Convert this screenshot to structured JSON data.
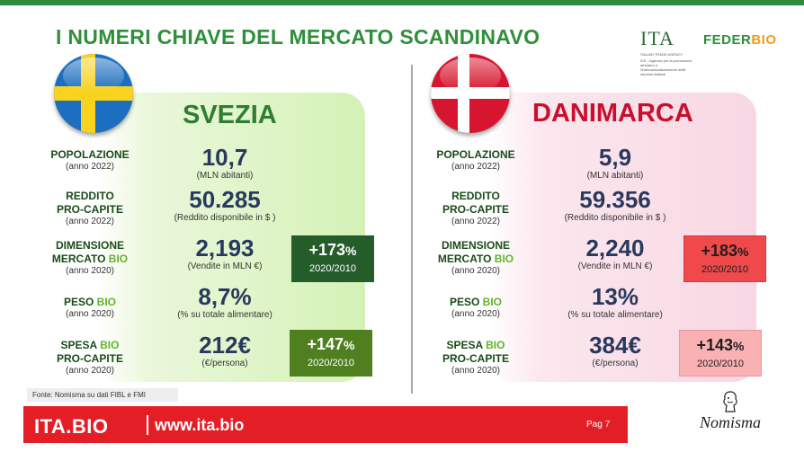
{
  "title": "I NUMERI CHIAVE DEL MERCATO SCANDINAVO",
  "logos": {
    "ita_mark": "ITA",
    "ita_sub": "ITALIAN TRADE AGENCY",
    "ita_desc": "ICE - Agenzia per la promozione all'estero e l'internazionalizzazione delle imprese italiane",
    "federbio_pre": "FEDER",
    "federbio_post": "BIO",
    "nomisma": "Nomisma"
  },
  "countries": [
    {
      "name": "SVEZIA",
      "flag": "sweden-flag",
      "rows": [
        {
          "label": "POPOLAZIONE",
          "label_bio": "",
          "label2": "",
          "year": "(anno 2022)",
          "value": "10,7",
          "unit": "(MLN abitanti)"
        },
        {
          "label": "REDDITO",
          "label_bio": "",
          "label2": "PRO-CAPITE",
          "year": "(anno 2022)",
          "value": "50.285",
          "unit": "(Reddito disponibile in $ )"
        },
        {
          "label": "DIMENSIONE",
          "label_bio": "",
          "label2": "MERCATO",
          "label2_bio": "BIO",
          "year": "(anno 2020)",
          "value": "2,193",
          "unit": "(Vendite in MLN €)"
        },
        {
          "label": "PESO ",
          "label_bio": "BIO",
          "label2": "",
          "year": "(anno 2020)",
          "value": "8,7%",
          "unit": "(% su totale alimentare)"
        },
        {
          "label": "SPESA ",
          "label_bio": "BIO",
          "label2": "PRO-CAPITE",
          "year": "(anno 2020)",
          "value": "212€",
          "unit": "(€/persona)"
        }
      ],
      "growth": [
        {
          "pct": "+173",
          "sym": "%",
          "period": "2020/2010",
          "color": "#245c2a"
        },
        {
          "pct": "+147",
          "sym": "%",
          "period": "2020/2010",
          "color": "#4f7f1e"
        }
      ]
    },
    {
      "name": "DANIMARCA",
      "flag": "denmark-flag",
      "rows": [
        {
          "label": "POPOLAZIONE",
          "label_bio": "",
          "label2": "",
          "year": "(anno 2022)",
          "value": "5,9",
          "unit": "(MLN abitanti)"
        },
        {
          "label": "REDDITO",
          "label_bio": "",
          "label2": "PRO-CAPITE",
          "year": "(anno 2022)",
          "value": "59.356",
          "unit": "(Reddito disponibile in $ )"
        },
        {
          "label": "DIMENSIONE",
          "label_bio": "",
          "label2": "MERCATO",
          "label2_bio": "BIO",
          "year": "(anno 2020)",
          "value": "2,240",
          "unit": "(Vendite in MLN €)"
        },
        {
          "label": "PESO ",
          "label_bio": "BIO",
          "label2": "",
          "year": "(anno 2020)",
          "value": "13%",
          "unit": "(% su totale alimentare)"
        },
        {
          "label": "SPESA ",
          "label_bio": "BIO",
          "label2": "PRO-CAPITE",
          "year": "(anno 2020)",
          "value": "384€",
          "unit": "(€/persona)"
        }
      ],
      "growth": [
        {
          "pct": "+183",
          "sym": "%",
          "period": "2020/2010",
          "color": "#f0494b"
        },
        {
          "pct": "+143",
          "sym": "%",
          "period": "2020/2010",
          "color": "#f9b1b4"
        }
      ]
    }
  ],
  "source": "Fonte: Nomisma su dati FIBL e FMI",
  "footer": {
    "brand": "ITA.BIO",
    "url": "www.ita.bio",
    "page": "Pag 7"
  }
}
